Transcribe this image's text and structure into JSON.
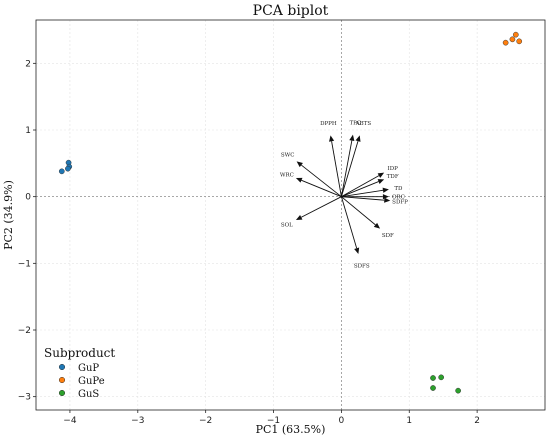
{
  "chart_data": {
    "type": "scatter",
    "title": "PCA biplot",
    "xlabel": "PC1 (63.5%)",
    "ylabel": "PC2 (34.9%)",
    "xlim": [
      -4.5,
      3.0
    ],
    "ylim": [
      -3.2,
      2.65
    ],
    "xticks": [
      -4,
      -3,
      -2,
      -1,
      0,
      1,
      2
    ],
    "yticks": [
      -3,
      -2,
      -1,
      0,
      1,
      2
    ],
    "grid": true,
    "legend": {
      "title": "Subproduct",
      "placement": "bottom-left"
    },
    "series": [
      {
        "name": "GuP",
        "color": "#1f77b4",
        "points": [
          [
            -4.12,
            0.38
          ],
          [
            -4.02,
            0.51
          ],
          [
            -4.01,
            0.45
          ],
          [
            -4.03,
            0.42
          ]
        ]
      },
      {
        "name": "GuPe",
        "color": "#ff7f0e",
        "points": [
          [
            2.42,
            2.31
          ],
          [
            2.52,
            2.36
          ],
          [
            2.57,
            2.43
          ],
          [
            2.62,
            2.33
          ]
        ]
      },
      {
        "name": "GuS",
        "color": "#2ca02c",
        "points": [
          [
            1.35,
            -2.72
          ],
          [
            1.47,
            -2.71
          ],
          [
            1.35,
            -2.87
          ],
          [
            1.72,
            -2.91
          ]
        ]
      }
    ],
    "loadings": [
      {
        "label": "DPPH",
        "x": -0.16,
        "y": 0.92
      },
      {
        "label": "TPC",
        "x": 0.17,
        "y": 0.93
      },
      {
        "label": "ABTS",
        "x": 0.27,
        "y": 0.92
      },
      {
        "label": "SWC",
        "x": -0.66,
        "y": 0.53
      },
      {
        "label": "WRC",
        "x": -0.67,
        "y": 0.28
      },
      {
        "label": "IDP",
        "x": 0.63,
        "y": 0.36
      },
      {
        "label": "TDF",
        "x": 0.63,
        "y": 0.26
      },
      {
        "label": "TD",
        "x": 0.7,
        "y": 0.11
      },
      {
        "label": "ORC",
        "x": 0.7,
        "y": 0.0
      },
      {
        "label": "SDFP",
        "x": 0.72,
        "y": -0.06
      },
      {
        "label": "SOL",
        "x": -0.67,
        "y": -0.35
      },
      {
        "label": "SDF",
        "x": 0.57,
        "y": -0.48
      },
      {
        "label": "SDFS",
        "x": 0.25,
        "y": -0.86
      }
    ]
  }
}
